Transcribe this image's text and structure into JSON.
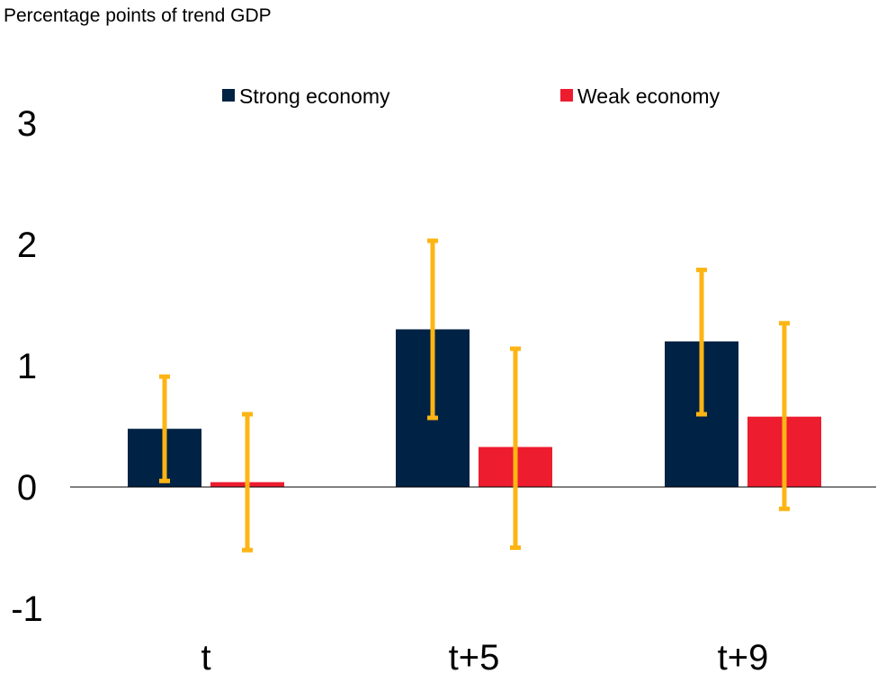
{
  "chart_data": {
    "type": "bar",
    "title": "",
    "ylabel": "Percentage points of trend GDP",
    "xlabel": "",
    "categories": [
      "t",
      "t+5",
      "t+9"
    ],
    "ylim": [
      -1,
      3
    ],
    "yticks": [
      "3",
      "2",
      "1",
      "0",
      "-1"
    ],
    "ytick_values": [
      3,
      2,
      1,
      0,
      -1
    ],
    "legend_position": "top",
    "series": [
      {
        "name": "Strong economy",
        "color": "#002244",
        "values": [
          0.48,
          1.3,
          1.2
        ],
        "error_low": [
          0.05,
          0.57,
          0.6
        ],
        "error_high": [
          0.91,
          2.03,
          1.79
        ]
      },
      {
        "name": "Weak economy",
        "color": "#ED1C2E",
        "values": [
          0.04,
          0.33,
          0.58
        ],
        "error_low": [
          -0.52,
          -0.5,
          -0.18
        ],
        "error_high": [
          0.6,
          1.14,
          1.35
        ]
      }
    ],
    "error_bar_color": "#FDB515"
  }
}
